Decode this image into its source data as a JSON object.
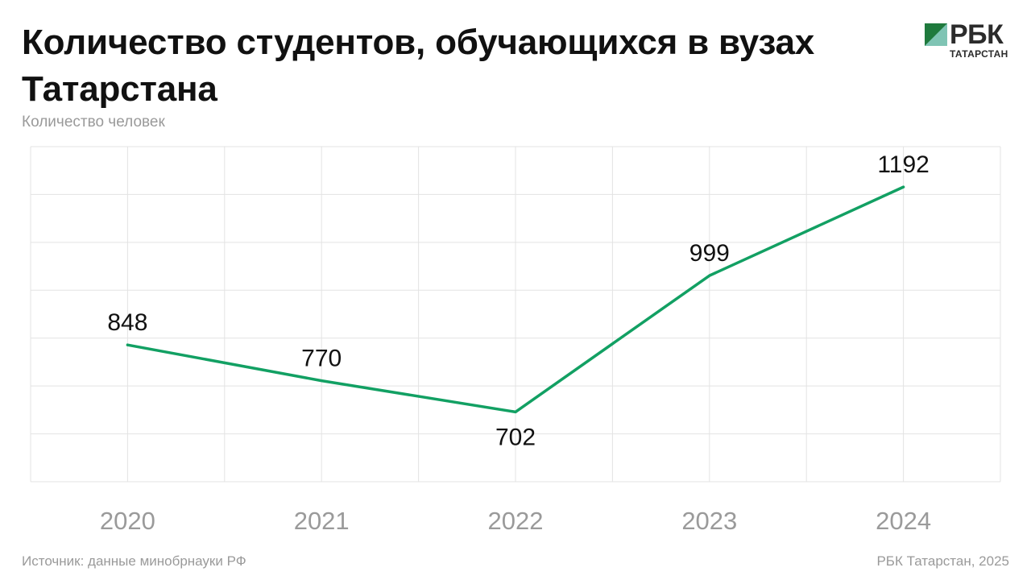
{
  "header": {
    "title": "Количество студентов, обучающихся в вузах Татарстана",
    "subtitle": "Количество человек"
  },
  "logo": {
    "name": "РБК",
    "region": "ТАТАРСТАН",
    "colors": [
      "#1f7a3d",
      "#7fc4b4",
      "#2b2b2b"
    ]
  },
  "footer": {
    "source": "Источник: данные минобрнауки РФ",
    "credit": "РБК Татарстан, 2025"
  },
  "chart_data": {
    "type": "line",
    "categories": [
      "2020",
      "2021",
      "2022",
      "2023",
      "2024"
    ],
    "values": [
      848,
      770,
      702,
      999,
      1192
    ],
    "data_labels": [
      "848",
      "770",
      "702",
      "999",
      "1192"
    ],
    "grid": true,
    "line_color": "#12a063",
    "ylim": [
      550,
      1280
    ]
  }
}
